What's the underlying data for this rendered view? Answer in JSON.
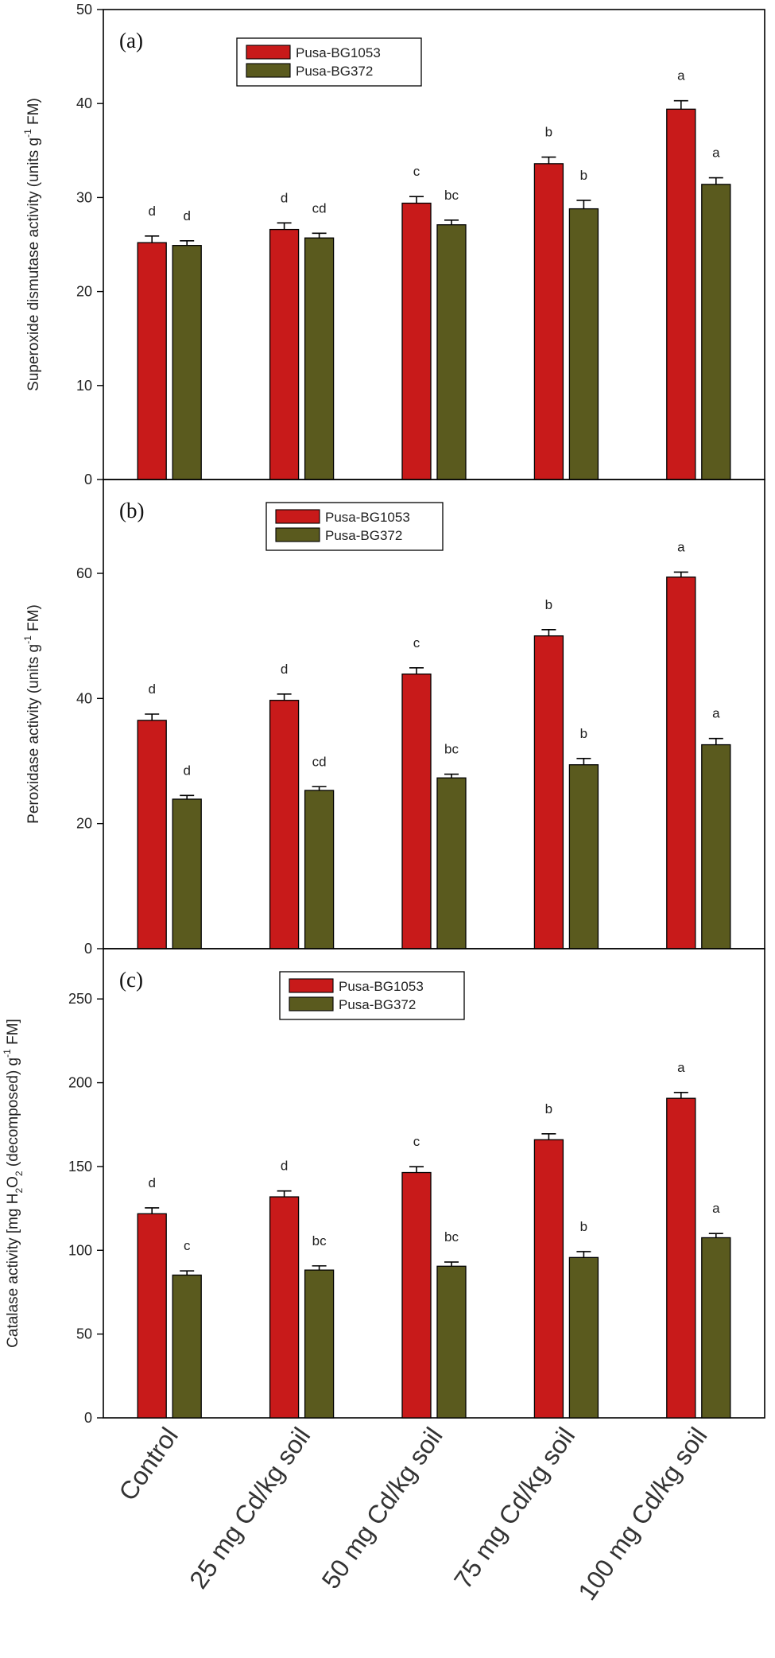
{
  "colors": {
    "series1": "#c81a1a",
    "series2": "#5a5a1e",
    "axis": "#000000"
  },
  "categories": [
    "Control",
    "25 mg Cd/kg soil",
    "50 mg Cd/kg soil",
    "75 mg Cd/kg soil",
    "100 mg Cd/kg soil"
  ],
  "chart_data": [
    {
      "type": "bar",
      "panel": "(a)",
      "categories": [
        "Control",
        "25 mg Cd/kg soil",
        "50 mg Cd/kg soil",
        "75 mg Cd/kg soil",
        "100 mg Cd/kg soil"
      ],
      "ylabel_main": "Superoxide dismutase activity (units g",
      "ylabel_sup": "-1",
      "ylabel_end": " FM)",
      "ylim": [
        0,
        50
      ],
      "yticks": [
        0,
        10,
        20,
        30,
        40,
        50
      ],
      "legend_position": "top-left",
      "series": [
        {
          "name": "Pusa-BG1053",
          "values": [
            25.2,
            26.6,
            29.4,
            33.6,
            39.4
          ],
          "errors": [
            0.7,
            0.7,
            0.7,
            0.7,
            0.9
          ],
          "letters": [
            "d",
            "d",
            "c",
            "b",
            "a"
          ]
        },
        {
          "name": "Pusa-BG372",
          "values": [
            24.9,
            25.7,
            27.1,
            28.8,
            31.4
          ],
          "errors": [
            0.5,
            0.5,
            0.5,
            0.9,
            0.7
          ],
          "letters": [
            "d",
            "cd",
            "bc",
            "b",
            "a"
          ]
        }
      ]
    },
    {
      "type": "bar",
      "panel": "(b)",
      "categories": [
        "Control",
        "25 mg Cd/kg soil",
        "50 mg Cd/kg soil",
        "75 mg Cd/kg soil",
        "100 mg Cd/kg soil"
      ],
      "ylabel_main": "Peroxidase activity (units g",
      "ylabel_sup": "-1",
      "ylabel_end": " FM)",
      "ylim": [
        0,
        75
      ],
      "yticks": [
        0,
        20,
        40,
        60
      ],
      "legend_position": "top-left",
      "series": [
        {
          "name": "Pusa-BG1053",
          "values": [
            36.5,
            39.7,
            43.9,
            50.0,
            59.4
          ],
          "errors": [
            1.0,
            1.0,
            1.0,
            1.0,
            0.8
          ],
          "letters": [
            "d",
            "d",
            "c",
            "b",
            "a"
          ]
        },
        {
          "name": "Pusa-BG372",
          "values": [
            23.9,
            25.3,
            27.3,
            29.4,
            32.6
          ],
          "errors": [
            0.6,
            0.6,
            0.6,
            1.0,
            1.0
          ],
          "letters": [
            "d",
            "cd",
            "bc",
            "b",
            "a"
          ]
        }
      ]
    },
    {
      "type": "bar",
      "panel": "(c)",
      "categories": [
        "Control",
        "25 mg Cd/kg soil",
        "50 mg Cd/kg soil",
        "75 mg Cd/kg soil",
        "100 mg Cd/kg soil"
      ],
      "ylabel_main": "Catalase activity [mg H",
      "ylabel_sub1": "2",
      "ylabel_mid": "O",
      "ylabel_sub2": "2",
      "ylabel_mid2": " (decomposed) g",
      "ylabel_sup": "-1",
      "ylabel_end": " FM]",
      "ylim": [
        0,
        280
      ],
      "yticks": [
        0,
        50,
        100,
        150,
        200,
        250
      ],
      "legend_position": "top-left",
      "series": [
        {
          "name": "Pusa-BG1053",
          "values": [
            121.8,
            131.9,
            146.4,
            166.0,
            190.7
          ],
          "errors": [
            3.5,
            3.5,
            3.5,
            3.5,
            3.5
          ],
          "letters": [
            "d",
            "d",
            "c",
            "b",
            "a"
          ]
        },
        {
          "name": "Pusa-BG372",
          "values": [
            85.2,
            88.2,
            90.5,
            95.7,
            107.5
          ],
          "errors": [
            2.5,
            2.5,
            2.5,
            3.5,
            2.5
          ],
          "letters": [
            "c",
            "bc",
            "bc",
            "b",
            "a"
          ]
        }
      ]
    }
  ]
}
